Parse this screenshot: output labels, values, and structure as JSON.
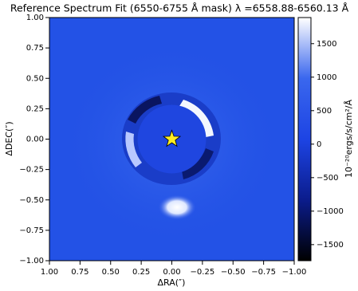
{
  "chart_data": {
    "type": "image",
    "title": "Reference Spectrum Fit (6550-6755 Å mask) λ =6558.88-6560.13 Å",
    "xlabel": "ΔRA(″)",
    "ylabel": "ΔDEC(″)",
    "xlim": [
      1,
      -1
    ],
    "ylim": [
      -1,
      1
    ],
    "xticks": [
      {
        "value": 1,
        "label": "1.00"
      },
      {
        "value": 0.75,
        "label": "0.75"
      },
      {
        "value": 0.5,
        "label": "0.50"
      },
      {
        "value": 0.25,
        "label": "0.25"
      },
      {
        "value": 0,
        "label": "0.00"
      },
      {
        "value": -0.25,
        "label": "−0.25"
      },
      {
        "value": -0.5,
        "label": "−0.50"
      },
      {
        "value": -0.75,
        "label": "−0.75"
      },
      {
        "value": -1,
        "label": "−1.00"
      }
    ],
    "yticks": [
      {
        "value": 1,
        "label": "1.00"
      },
      {
        "value": 0.75,
        "label": "0.75"
      },
      {
        "value": 0.5,
        "label": "0.50"
      },
      {
        "value": 0.25,
        "label": "0.25"
      },
      {
        "value": 0,
        "label": "0.00"
      },
      {
        "value": -0.25,
        "label": "−0.25"
      },
      {
        "value": -0.5,
        "label": "−0.50"
      },
      {
        "value": -0.75,
        "label": "−0.75"
      },
      {
        "value": -1,
        "label": "−1.00"
      }
    ],
    "colorbar": {
      "label": "10⁻²⁰ergs/s/cm²/Å",
      "lim": [
        -1740,
        1890
      ],
      "ticks": [
        1500,
        1000,
        500,
        0,
        {
          "value": -500,
          "label": "−500"
        },
        {
          "value": -1000,
          "label": "−1000"
        },
        {
          "value": -1500,
          "label": "−1500"
        }
      ],
      "colormap": [
        "#000000",
        "#0b1c8c",
        "#1d44e4",
        "#3a67ee",
        "#ffffff"
      ]
    },
    "marker": {
      "x": 0,
      "y": 0,
      "color": "#ffee22"
    }
  }
}
